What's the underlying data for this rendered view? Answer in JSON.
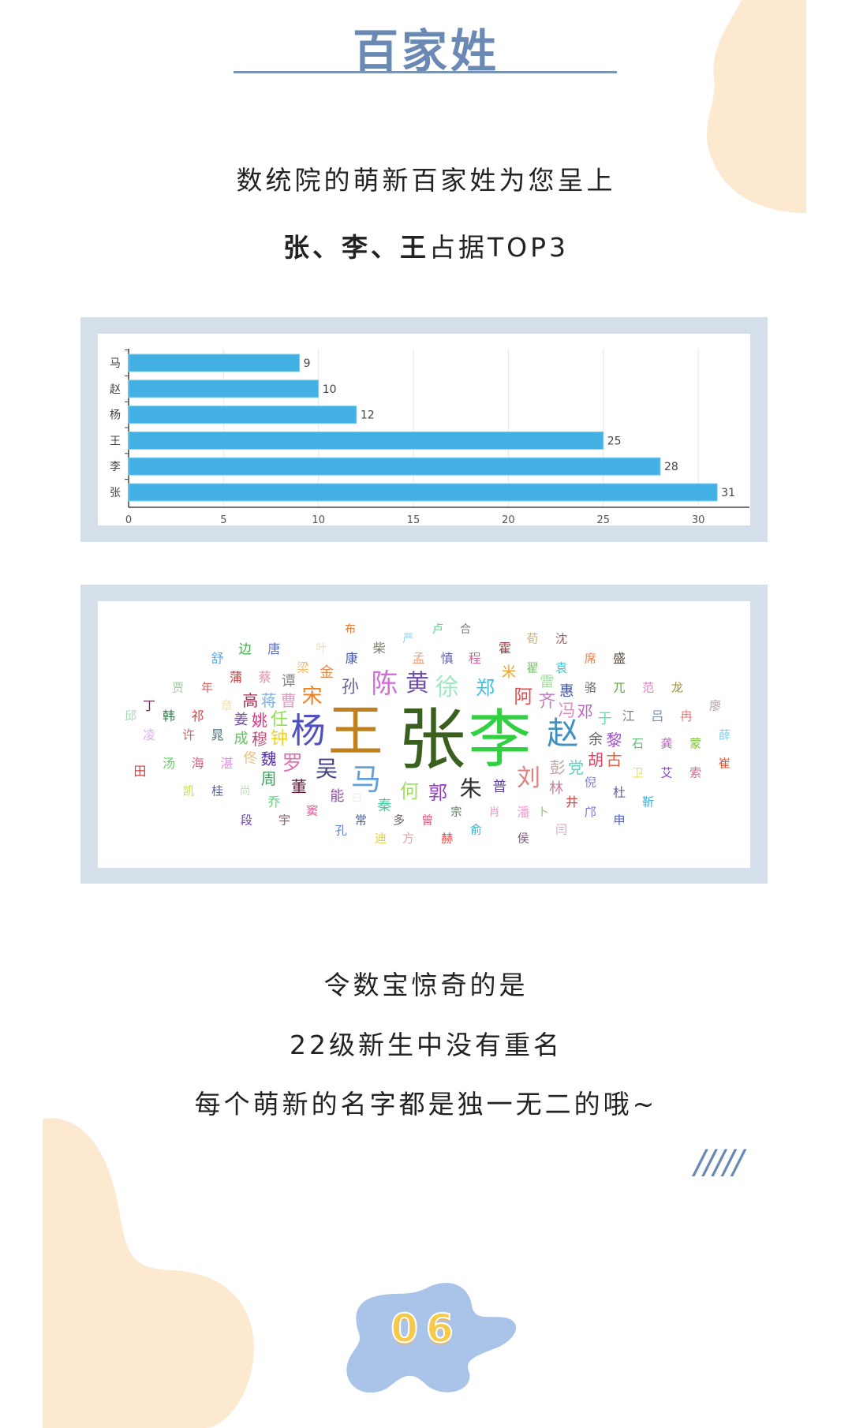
{
  "header": {
    "title": "百家姓"
  },
  "intro": {
    "line1": "数统院的萌新百家姓为您呈上",
    "line2_bold": "张、李、王",
    "line2_rest": "占据TOP3"
  },
  "chart_data": {
    "type": "bar",
    "orientation": "horizontal",
    "categories": [
      "马",
      "赵",
      "杨",
      "王",
      "李",
      "张"
    ],
    "values": [
      9,
      10,
      12,
      25,
      28,
      31
    ],
    "xticks": [
      0,
      5,
      10,
      15,
      20,
      25,
      30
    ],
    "xlim": [
      0,
      32.5
    ],
    "grid": true,
    "bar_color": "#42b0e3",
    "data_labels": true
  },
  "wordcloud": {
    "words": [
      {
        "t": "布",
        "c": "#e07b3c"
      },
      {
        "t": "严",
        "c": "#8fd3f5"
      },
      {
        "t": "边",
        "c": "#3cb043"
      },
      {
        "t": "唐",
        "c": "#5b6fc0"
      },
      {
        "t": "叶",
        "c": "#e8e0a8"
      },
      {
        "t": "柴",
        "c": "#7a7a6a"
      },
      {
        "t": "舒",
        "c": "#5aa8e8"
      },
      {
        "t": "康",
        "c": "#4a5aa8"
      },
      {
        "t": "孟",
        "c": "#f0a080"
      },
      {
        "t": "梁",
        "c": "#f0c070"
      },
      {
        "t": "金",
        "c": "#e08a50"
      },
      {
        "t": "蒲",
        "c": "#c04040"
      },
      {
        "t": "蔡",
        "c": "#e090b0"
      },
      {
        "t": "谭",
        "c": "#888888"
      },
      {
        "t": "孙",
        "c": "#7060a0"
      },
      {
        "t": "陈",
        "c": "#d070d8"
      },
      {
        "t": "黄",
        "c": "#7050b0"
      },
      {
        "t": "贾",
        "c": "#a0d0a0"
      },
      {
        "t": "年",
        "c": "#e06060"
      },
      {
        "t": "宋",
        "c": "#f08020"
      },
      {
        "t": "高",
        "c": "#a03050"
      },
      {
        "t": "蒋",
        "c": "#80b0e0"
      },
      {
        "t": "曹",
        "c": "#e0a0c0"
      },
      {
        "t": "丁",
        "c": "#6a3060"
      },
      {
        "t": "章",
        "c": "#f0e0b0"
      },
      {
        "t": "邱",
        "c": "#a0e0b0"
      },
      {
        "t": "韩",
        "c": "#3a7a50"
      },
      {
        "t": "祁",
        "c": "#d04040"
      },
      {
        "t": "姜",
        "c": "#7050a0"
      },
      {
        "t": "姚",
        "c": "#e03080"
      },
      {
        "t": "任",
        "c": "#90e050"
      },
      {
        "t": "杨",
        "c": "#5050c0"
      },
      {
        "t": "王",
        "c": "#c08020"
      },
      {
        "t": "凌",
        "c": "#e0b0f0"
      },
      {
        "t": "许",
        "c": "#c07070"
      },
      {
        "t": "晁",
        "c": "#507080"
      },
      {
        "t": "成",
        "c": "#60c060"
      },
      {
        "t": "穆",
        "c": "#c05080"
      },
      {
        "t": "钟",
        "c": "#f0d020"
      },
      {
        "t": "张",
        "c": "#3a6020"
      },
      {
        "t": "李",
        "c": "#30d040"
      },
      {
        "t": "佟",
        "c": "#f0c080"
      },
      {
        "t": "魏",
        "c": "#5030a0"
      },
      {
        "t": "罗",
        "c": "#e070b0"
      },
      {
        "t": "汤",
        "c": "#60d060"
      },
      {
        "t": "海",
        "c": "#e06080"
      },
      {
        "t": "湛",
        "c": "#e090e0"
      },
      {
        "t": "田",
        "c": "#d04040"
      },
      {
        "t": "吴",
        "c": "#404080"
      },
      {
        "t": "马",
        "c": "#60a0e0"
      },
      {
        "t": "周",
        "c": "#40a060"
      },
      {
        "t": "董",
        "c": "#602040"
      },
      {
        "t": "何",
        "c": "#a0e060"
      },
      {
        "t": "凯",
        "c": "#d0e040"
      },
      {
        "t": "桂",
        "c": "#5060a0"
      },
      {
        "t": "尚",
        "c": "#c0e0c0"
      },
      {
        "t": "能",
        "c": "#9050a0"
      },
      {
        "t": "白",
        "c": "#ececf4"
      },
      {
        "t": "乔",
        "c": "#60d080"
      },
      {
        "t": "秦",
        "c": "#40d0a0"
      },
      {
        "t": "窦",
        "c": "#e06090"
      },
      {
        "t": "段",
        "c": "#7040c0"
      },
      {
        "t": "宇",
        "c": "#806060"
      },
      {
        "t": "常",
        "c": "#4060a0"
      },
      {
        "t": "多",
        "c": "#706060"
      },
      {
        "t": "孔",
        "c": "#6080e0"
      },
      {
        "t": "迪",
        "c": "#e0d040"
      },
      {
        "t": "方",
        "c": "#f0a0a0"
      },
      {
        "t": "卢",
        "c": "#60d090"
      },
      {
        "t": "合",
        "c": "#808080"
      },
      {
        "t": "荀",
        "c": "#d0b070"
      },
      {
        "t": "沈",
        "c": "#a06060"
      },
      {
        "t": "霍",
        "c": "#904040"
      },
      {
        "t": "慎",
        "c": "#6060b0"
      },
      {
        "t": "程",
        "c": "#e060a0"
      },
      {
        "t": "席",
        "c": "#f08050"
      },
      {
        "t": "盛",
        "c": "#605040"
      },
      {
        "t": "米",
        "c": "#f0a020"
      },
      {
        "t": "翟",
        "c": "#70c060"
      },
      {
        "t": "袁",
        "c": "#40c0d0"
      },
      {
        "t": "徐",
        "c": "#a0e8c0"
      },
      {
        "t": "郑",
        "c": "#40c0e0"
      },
      {
        "t": "雷",
        "c": "#a0e0a0"
      },
      {
        "t": "惠",
        "c": "#4050a0"
      },
      {
        "t": "骆",
        "c": "#707070"
      },
      {
        "t": "兀",
        "c": "#60a040"
      },
      {
        "t": "范",
        "c": "#e080c0"
      },
      {
        "t": "龙",
        "c": "#a09040"
      },
      {
        "t": "阿",
        "c": "#e05050"
      },
      {
        "t": "齐",
        "c": "#c080c0"
      },
      {
        "t": "廖",
        "c": "#b0a0a0"
      },
      {
        "t": "冯",
        "c": "#e090c0"
      },
      {
        "t": "邓",
        "c": "#c060c0"
      },
      {
        "t": "于",
        "c": "#60e0b0"
      },
      {
        "t": "江",
        "c": "#808080"
      },
      {
        "t": "吕",
        "c": "#8090c0"
      },
      {
        "t": "冉",
        "c": "#f08080"
      },
      {
        "t": "赵",
        "c": "#4090c0"
      },
      {
        "t": "薛",
        "c": "#80d0f0"
      },
      {
        "t": "余",
        "c": "#606060"
      },
      {
        "t": "黎",
        "c": "#a050d0"
      },
      {
        "t": "石",
        "c": "#60c080"
      },
      {
        "t": "龚",
        "c": "#c060c0"
      },
      {
        "t": "蒙",
        "c": "#80c040"
      },
      {
        "t": "胡",
        "c": "#e04060"
      },
      {
        "t": "古",
        "c": "#e06040"
      },
      {
        "t": "崔",
        "c": "#e05030"
      },
      {
        "t": "彭",
        "c": "#c0a0a0"
      },
      {
        "t": "党",
        "c": "#60d0c0"
      },
      {
        "t": "刘",
        "c": "#e08080"
      },
      {
        "t": "卫",
        "c": "#f0e060"
      },
      {
        "t": "艾",
        "c": "#9040c0"
      },
      {
        "t": "索",
        "c": "#e06090"
      },
      {
        "t": "郭",
        "c": "#9040c0"
      },
      {
        "t": "朱",
        "c": "#303030"
      },
      {
        "t": "普",
        "c": "#6040a0"
      },
      {
        "t": "倪",
        "c": "#8080e0"
      },
      {
        "t": "林",
        "c": "#c080a0"
      },
      {
        "t": "杜",
        "c": "#6060a0"
      },
      {
        "t": "井",
        "c": "#e04040"
      },
      {
        "t": "靳",
        "c": "#40b0e0"
      },
      {
        "t": "宗",
        "c": "#507050"
      },
      {
        "t": "肖",
        "c": "#e0a0c0"
      },
      {
        "t": "潘",
        "c": "#f0a0d0"
      },
      {
        "t": "卜",
        "c": "#90c070"
      },
      {
        "t": "邝",
        "c": "#8070e0"
      },
      {
        "t": "曾",
        "c": "#e06080"
      },
      {
        "t": "申",
        "c": "#5060d0"
      },
      {
        "t": "俞",
        "c": "#40b0c0"
      },
      {
        "t": "闫",
        "c": "#d0a0c0"
      },
      {
        "t": "赫",
        "c": "#f04040"
      },
      {
        "t": "侯",
        "c": "#806080"
      }
    ]
  },
  "outro": {
    "line1": "令数宝惊奇的是",
    "line2": "22级新生中没有重名",
    "line3": "每个萌新的名字都是独一无二的哦~"
  },
  "decor": {
    "slashes": "/////",
    "page_number": "06"
  },
  "colors": {
    "accent": "#6a8ab5",
    "frame": "#d4dfea",
    "blob_peach": "#fde9d0",
    "blob_blue": "#a9c4e8",
    "number_yellow": "#f7c948"
  }
}
